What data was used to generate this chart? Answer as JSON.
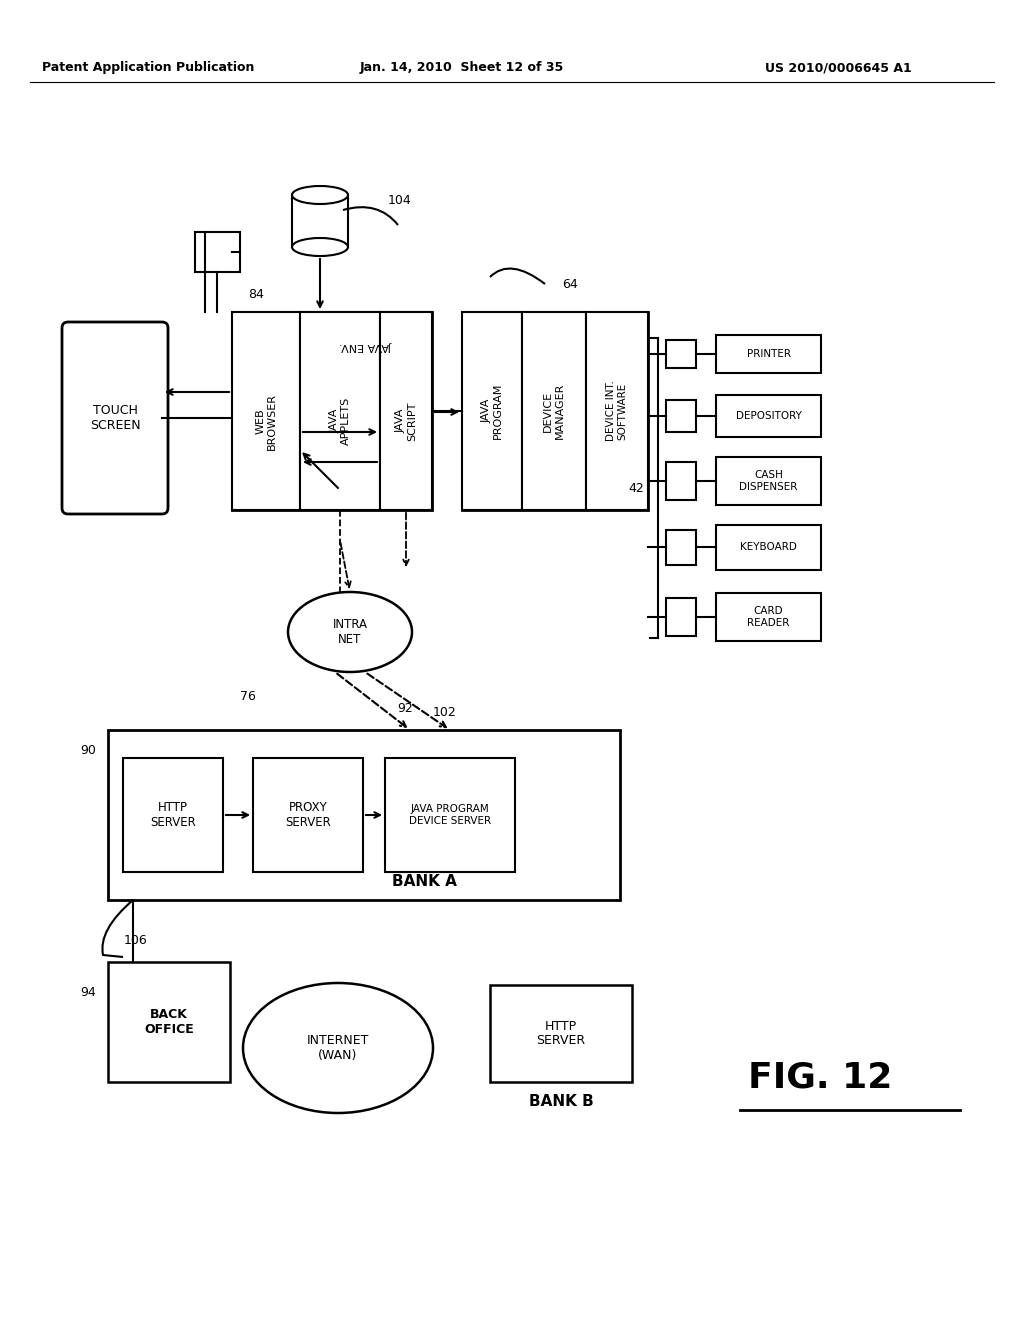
{
  "title_left": "Patent Application Publication",
  "title_mid": "Jan. 14, 2010  Sheet 12 of 35",
  "title_right": "US 2010/0006645 A1",
  "fig_label": "FIG. 12",
  "background": "#ffffff"
}
